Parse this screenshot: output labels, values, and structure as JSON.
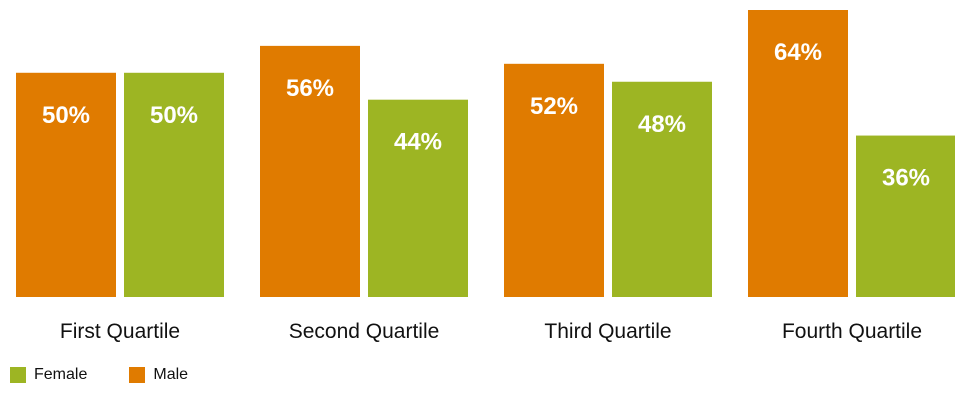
{
  "colors": {
    "male": "#E07B00",
    "female": "#9DB523",
    "label_on_bar": "#FFFFFF",
    "text": "#111111"
  },
  "chart_data": {
    "type": "bar",
    "categories": [
      "First Quartile",
      "Second Quartile",
      "Third Quartile",
      "Fourth Quartile"
    ],
    "series": [
      {
        "name": "Male",
        "values": [
          50,
          56,
          52,
          64
        ],
        "labels": [
          "50%",
          "56%",
          "52%",
          "64%"
        ]
      },
      {
        "name": "Female",
        "values": [
          50,
          44,
          48,
          36
        ],
        "labels": [
          "50%",
          "44%",
          "48%",
          "36%"
        ]
      }
    ],
    "title": "",
    "xlabel": "",
    "ylabel": "",
    "ylim": [
      0,
      64
    ],
    "grid": false,
    "legend_placement": "bottom-left",
    "legend": [
      {
        "name": "Female"
      },
      {
        "name": "Male"
      }
    ]
  }
}
